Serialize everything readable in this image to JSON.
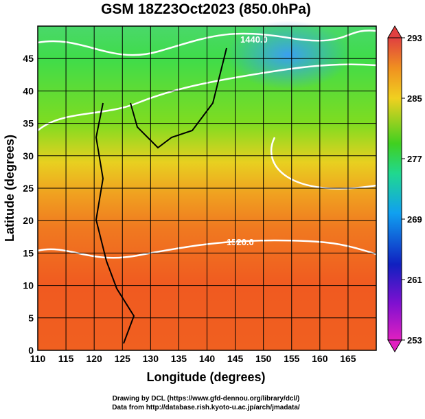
{
  "chart_data": {
    "type": "map",
    "title": "GSM 18Z23Oct2023 (850.0hPa)",
    "xlabel": "Longitude (degrees)",
    "ylabel": "Latitude  (degrees)",
    "xlim": [
      110,
      170
    ],
    "xticks": [
      110,
      115,
      120,
      125,
      130,
      135,
      140,
      145,
      150,
      155,
      160,
      165
    ],
    "ylim": [
      0,
      50
    ],
    "yticks": [
      0,
      5,
      10,
      15,
      20,
      25,
      30,
      35,
      40,
      45
    ],
    "grid": true,
    "colorbar": {
      "lim": [
        253,
        293
      ],
      "ticks": [
        253,
        261,
        269,
        277,
        285,
        293
      ]
    },
    "contour_labels": [
      "1440.0",
      "1520.0"
    ],
    "credits": [
      "Drawing by DCL (https://www.gfd-dennou.org/library/dcl/)",
      "Data from http://database.rish.kyoto-u.ac.jp/arch/jmadata/"
    ]
  }
}
